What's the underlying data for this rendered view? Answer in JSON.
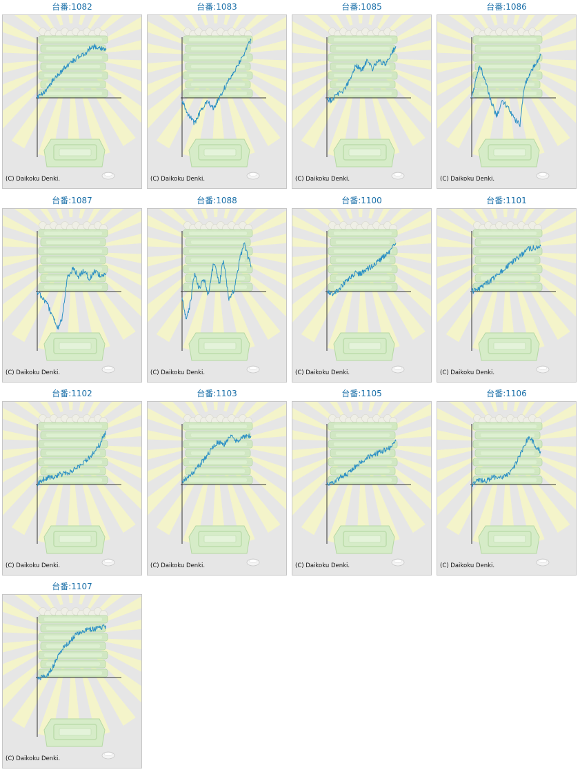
{
  "copyright": "(C) Daikoku Denki.",
  "title_prefix": "台番:",
  "colors": {
    "line": "#2b8fc4",
    "axis": "#333333",
    "title": "#1a6fa8",
    "panel_bg": "#e6e6e6",
    "border": "#c6c6c6"
  },
  "chart_data": [
    {
      "type": "line",
      "title": "台番:1082",
      "machine": "1082",
      "key": [
        [
          0,
          0.0
        ],
        [
          0.08,
          0.06
        ],
        [
          0.18,
          0.22
        ],
        [
          0.3,
          0.38
        ],
        [
          0.42,
          0.52
        ],
        [
          0.55,
          0.64
        ],
        [
          0.68,
          0.72
        ],
        [
          0.8,
          0.85
        ],
        [
          0.9,
          0.83
        ],
        [
          1.0,
          0.8
        ]
      ]
    },
    {
      "type": "line",
      "title": "台番:1083",
      "machine": "1083",
      "key": [
        [
          0,
          -0.05
        ],
        [
          0.08,
          -0.25
        ],
        [
          0.18,
          -0.42
        ],
        [
          0.28,
          -0.2
        ],
        [
          0.38,
          -0.05
        ],
        [
          0.46,
          -0.18
        ],
        [
          0.56,
          0.05
        ],
        [
          0.66,
          0.25
        ],
        [
          0.76,
          0.45
        ],
        [
          0.86,
          0.65
        ],
        [
          1.0,
          0.95
        ]
      ]
    },
    {
      "type": "line",
      "title": "台番:1085",
      "machine": "1085",
      "key": [
        [
          0,
          0.0
        ],
        [
          0.06,
          -0.05
        ],
        [
          0.14,
          0.06
        ],
        [
          0.24,
          0.12
        ],
        [
          0.34,
          0.3
        ],
        [
          0.42,
          0.55
        ],
        [
          0.5,
          0.45
        ],
        [
          0.58,
          0.6
        ],
        [
          0.66,
          0.48
        ],
        [
          0.74,
          0.62
        ],
        [
          0.84,
          0.55
        ],
        [
          0.92,
          0.7
        ],
        [
          1.0,
          0.85
        ]
      ]
    },
    {
      "type": "line",
      "title": "台番:1086",
      "machine": "1086",
      "key": [
        [
          0,
          0.0
        ],
        [
          0.06,
          0.3
        ],
        [
          0.12,
          0.55
        ],
        [
          0.2,
          0.25
        ],
        [
          0.28,
          -0.05
        ],
        [
          0.36,
          -0.3
        ],
        [
          0.44,
          -0.05
        ],
        [
          0.52,
          -0.15
        ],
        [
          0.62,
          -0.35
        ],
        [
          0.7,
          -0.45
        ],
        [
          0.76,
          0.2
        ],
        [
          0.84,
          0.4
        ],
        [
          0.92,
          0.55
        ],
        [
          1.0,
          0.7
        ]
      ]
    },
    {
      "type": "line",
      "title": "台番:1087",
      "machine": "1087",
      "key": [
        [
          0,
          0.0
        ],
        [
          0.08,
          -0.1
        ],
        [
          0.16,
          -0.25
        ],
        [
          0.24,
          -0.45
        ],
        [
          0.3,
          -0.6
        ],
        [
          0.36,
          -0.45
        ],
        [
          0.44,
          0.25
        ],
        [
          0.52,
          0.38
        ],
        [
          0.6,
          0.25
        ],
        [
          0.68,
          0.35
        ],
        [
          0.76,
          0.2
        ],
        [
          0.84,
          0.35
        ],
        [
          0.92,
          0.25
        ],
        [
          1.0,
          0.3
        ]
      ]
    },
    {
      "type": "line",
      "title": "台番:1088",
      "machine": "1088",
      "key": [
        [
          0,
          -0.1
        ],
        [
          0.06,
          -0.45
        ],
        [
          0.12,
          -0.2
        ],
        [
          0.18,
          0.3
        ],
        [
          0.24,
          0.05
        ],
        [
          0.32,
          0.2
        ],
        [
          0.38,
          -0.05
        ],
        [
          0.46,
          0.5
        ],
        [
          0.54,
          0.1
        ],
        [
          0.6,
          0.55
        ],
        [
          0.68,
          -0.15
        ],
        [
          0.76,
          0.05
        ],
        [
          0.84,
          0.55
        ],
        [
          0.9,
          0.8
        ],
        [
          1.0,
          0.4
        ]
      ]
    },
    {
      "type": "line",
      "title": "台番:1100",
      "machine": "1100",
      "key": [
        [
          0,
          0.0
        ],
        [
          0.1,
          -0.05
        ],
        [
          0.2,
          0.08
        ],
        [
          0.3,
          0.18
        ],
        [
          0.4,
          0.3
        ],
        [
          0.5,
          0.3
        ],
        [
          0.6,
          0.38
        ],
        [
          0.7,
          0.45
        ],
        [
          0.8,
          0.55
        ],
        [
          0.9,
          0.65
        ],
        [
          1.0,
          0.8
        ]
      ]
    },
    {
      "type": "line",
      "title": "台番:1101",
      "machine": "1101",
      "key": [
        [
          0,
          0.0
        ],
        [
          0.1,
          0.05
        ],
        [
          0.2,
          0.12
        ],
        [
          0.3,
          0.2
        ],
        [
          0.4,
          0.3
        ],
        [
          0.5,
          0.4
        ],
        [
          0.6,
          0.5
        ],
        [
          0.7,
          0.58
        ],
        [
          0.8,
          0.7
        ],
        [
          0.9,
          0.72
        ],
        [
          1.0,
          0.75
        ]
      ]
    },
    {
      "type": "line",
      "title": "台番:1102",
      "machine": "1102",
      "key": [
        [
          0,
          0.0
        ],
        [
          0.1,
          0.1
        ],
        [
          0.2,
          0.12
        ],
        [
          0.3,
          0.16
        ],
        [
          0.4,
          0.18
        ],
        [
          0.5,
          0.22
        ],
        [
          0.6,
          0.3
        ],
        [
          0.7,
          0.38
        ],
        [
          0.8,
          0.5
        ],
        [
          0.9,
          0.65
        ],
        [
          1.0,
          0.88
        ]
      ]
    },
    {
      "type": "line",
      "title": "台番:1103",
      "machine": "1103",
      "key": [
        [
          0,
          0.05
        ],
        [
          0.08,
          0.12
        ],
        [
          0.16,
          0.2
        ],
        [
          0.24,
          0.3
        ],
        [
          0.34,
          0.45
        ],
        [
          0.44,
          0.6
        ],
        [
          0.52,
          0.7
        ],
        [
          0.6,
          0.65
        ],
        [
          0.7,
          0.8
        ],
        [
          0.78,
          0.72
        ],
        [
          0.88,
          0.78
        ],
        [
          1.0,
          0.8
        ]
      ]
    },
    {
      "type": "line",
      "title": "台番:1105",
      "machine": "1105",
      "key": [
        [
          0,
          0.0
        ],
        [
          0.1,
          0.05
        ],
        [
          0.2,
          0.12
        ],
        [
          0.3,
          0.18
        ],
        [
          0.4,
          0.28
        ],
        [
          0.5,
          0.38
        ],
        [
          0.6,
          0.45
        ],
        [
          0.7,
          0.5
        ],
        [
          0.8,
          0.55
        ],
        [
          0.9,
          0.6
        ],
        [
          1.0,
          0.72
        ]
      ]
    },
    {
      "type": "line",
      "title": "台番:1106",
      "machine": "1106",
      "key": [
        [
          0,
          0.0
        ],
        [
          0.1,
          0.08
        ],
        [
          0.2,
          0.05
        ],
        [
          0.3,
          0.12
        ],
        [
          0.4,
          0.1
        ],
        [
          0.5,
          0.15
        ],
        [
          0.6,
          0.25
        ],
        [
          0.68,
          0.45
        ],
        [
          0.76,
          0.62
        ],
        [
          0.82,
          0.78
        ],
        [
          0.88,
          0.72
        ],
        [
          0.94,
          0.6
        ],
        [
          1.0,
          0.55
        ]
      ]
    },
    {
      "type": "line",
      "title": "台番:1107",
      "machine": "1107",
      "key": [
        [
          0,
          0.0
        ],
        [
          0.08,
          0.0
        ],
        [
          0.16,
          0.05
        ],
        [
          0.24,
          0.2
        ],
        [
          0.32,
          0.4
        ],
        [
          0.4,
          0.52
        ],
        [
          0.48,
          0.6
        ],
        [
          0.56,
          0.7
        ],
        [
          0.64,
          0.75
        ],
        [
          0.72,
          0.78
        ],
        [
          0.8,
          0.8
        ],
        [
          0.9,
          0.82
        ],
        [
          1.0,
          0.85
        ]
      ]
    }
  ]
}
